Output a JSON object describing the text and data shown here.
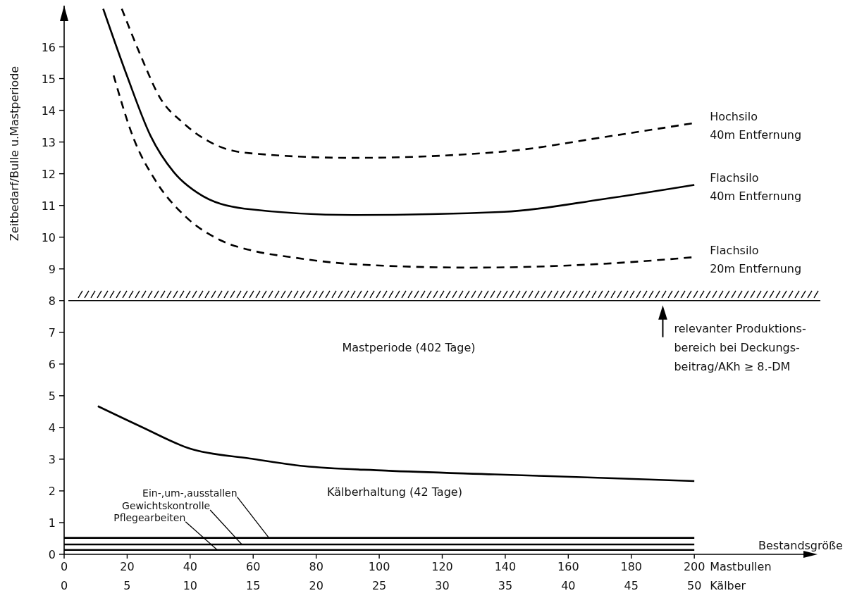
{
  "chart_data": {
    "type": "line",
    "ylabel": "Zeitbedarf/Bulle u.Mastperiode",
    "xlabel": "Mastbullen",
    "x2label": "Kälber",
    "xlim": [
      0,
      240
    ],
    "xticks": [
      0,
      20,
      40,
      60,
      80,
      100,
      120,
      140,
      160,
      180,
      200
    ],
    "x2lim": [
      0,
      60
    ],
    "x2ticks": [
      0,
      5,
      10,
      15,
      20,
      25,
      30,
      35,
      40,
      45,
      50
    ],
    "ylim": [
      0,
      17.3
    ],
    "yticks": [
      0,
      1,
      2,
      3,
      4,
      5,
      6,
      7,
      8,
      9,
      10,
      11,
      12,
      13,
      14,
      15,
      16
    ],
    "series": [
      {
        "name": "Hochsilo 40m Entfernung",
        "color": "#000000",
        "line_style": "dashed",
        "x": [
          18.3,
          24.4,
          30.4,
          37.8,
          48.3,
          58.6,
          91.5,
          139.6,
          171,
          200
        ],
        "values": [
          17.2,
          15.7,
          14.4,
          13.6,
          12.9,
          12.65,
          12.5,
          12.7,
          13.15,
          13.6
        ]
      },
      {
        "name": "Flachsilo 40m Entfernung",
        "color": "#000000",
        "line_style": "solid",
        "x": [
          12.4,
          19.9,
          27.4,
          34.8,
          42.3,
          57.2,
          91.5,
          139.6,
          171,
          200
        ],
        "values": [
          17.2,
          15.1,
          13.2,
          12.05,
          11.4,
          10.9,
          10.7,
          10.8,
          11.2,
          11.65
        ]
      },
      {
        "name": "Flachsilo 20m Entfernung",
        "color": "#000000",
        "line_style": "dashed",
        "x": [
          15.7,
          22.1,
          28.9,
          38.5,
          49.7,
          60.9,
          72,
          91.5,
          129,
          171,
          200
        ],
        "values": [
          15.1,
          13.1,
          11.8,
          10.65,
          9.9,
          9.55,
          9.37,
          9.15,
          9.04,
          9.16,
          9.37
        ]
      },
      {
        "color": "#000000",
        "line_style": "solid",
        "x": [
          10.7,
          24.5,
          40,
          59,
          76.2,
          102,
          136.6,
          171,
          200
        ],
        "values": [
          4.67,
          4.02,
          3.33,
          3.02,
          2.78,
          2.64,
          2.52,
          2.41,
          2.31
        ]
      },
      {
        "color": "#000000",
        "line_style": "solid",
        "x": [
          0,
          200
        ],
        "values": [
          0.52,
          0.52
        ]
      },
      {
        "color": "#000000",
        "line_style": "solid",
        "x": [
          0,
          200
        ],
        "values": [
          0.31,
          0.31
        ]
      },
      {
        "color": "#000000",
        "line_style": "solid",
        "x": [
          0,
          200
        ],
        "values": [
          0.14,
          0.14
        ]
      }
    ],
    "ref_lines": [
      {
        "axis": "y",
        "value": 8
      }
    ],
    "annotations": [
      "Mastperiode (402 Tage)",
      "Kälberhaltung (42 Tage)",
      "Bestandsgröße",
      {
        "text": "relevanter Produktions-\nbereich bei Deckungs-\nbeitrag/AKh ≥ 8.-DM",
        "x": 190,
        "y": 8
      },
      {
        "text": "Pflegearbeiten",
        "x": 48.6,
        "y": 0.14
      },
      {
        "text": "Gewichtskontrolle",
        "x": 56.4,
        "y": 0.31
      },
      {
        "text": "Ein-,um-,ausstallen",
        "x": 65,
        "y": 0.52
      }
    ]
  }
}
